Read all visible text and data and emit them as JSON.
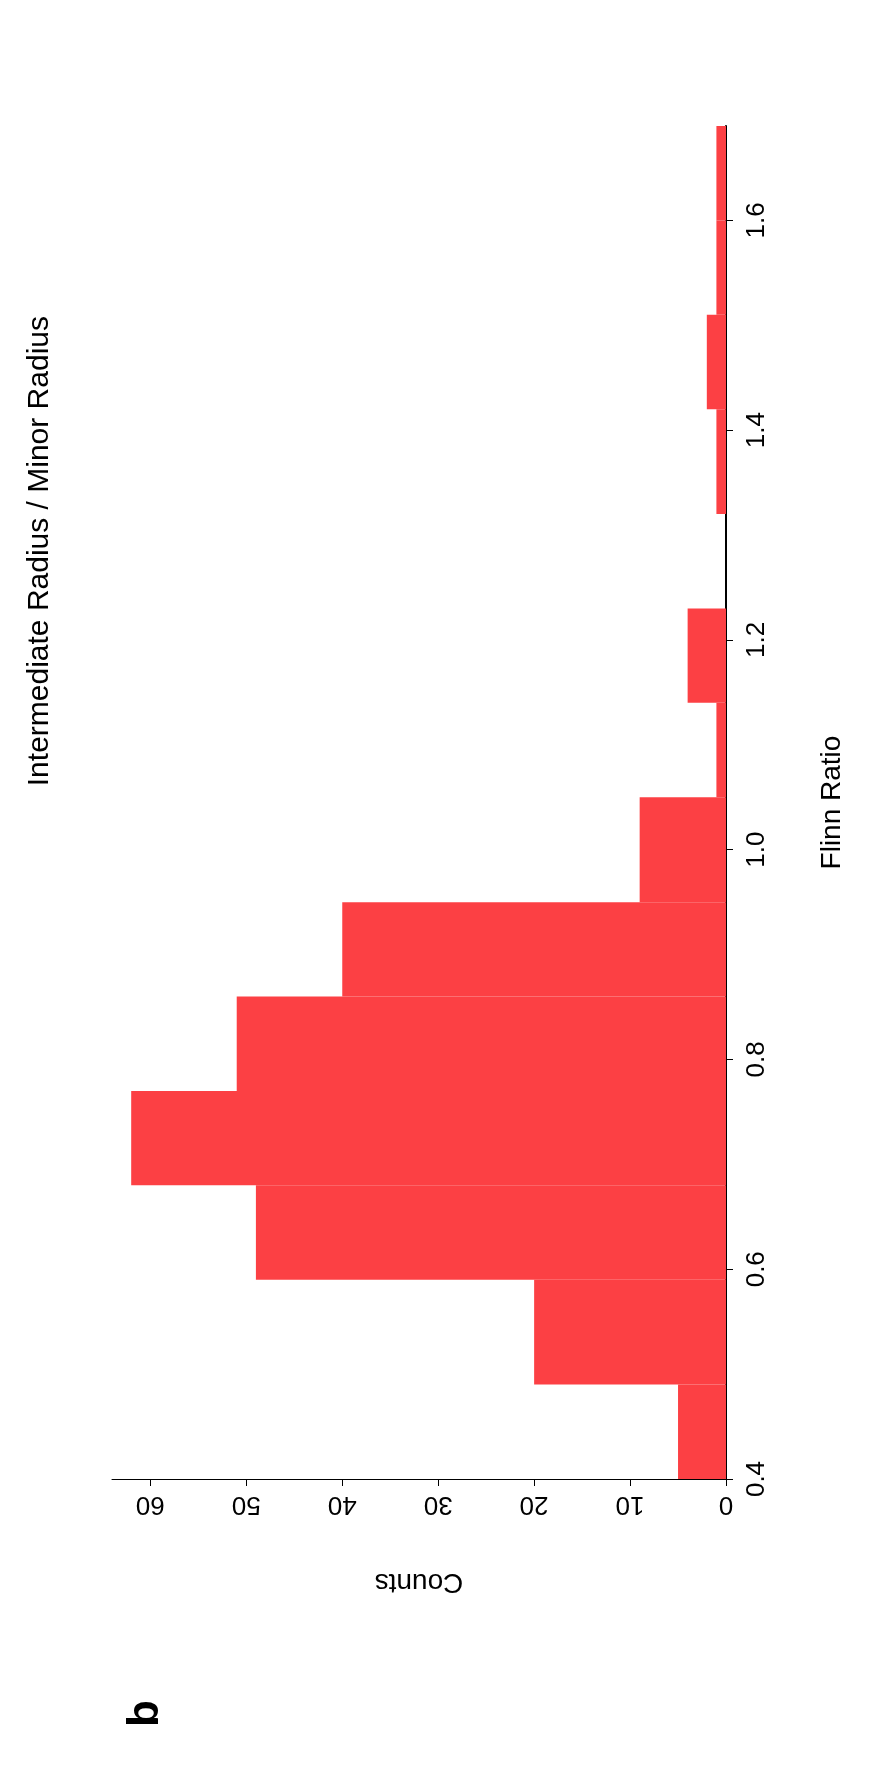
{
  "chart_data": {
    "type": "histogram",
    "orientation": "horizontal",
    "title": "Intermediate Radius / Minor Radius",
    "xlabel": "Counts",
    "ylabel": "Flinn Ratio",
    "bins": [
      0.4,
      0.49,
      0.59,
      0.68,
      0.77,
      0.86,
      0.95,
      1.05,
      1.14,
      1.23,
      1.32,
      1.42,
      1.51,
      1.6,
      1.69
    ],
    "values": [
      5,
      20,
      49,
      62,
      51,
      40,
      9,
      1,
      4,
      0,
      1,
      2,
      1,
      1
    ],
    "color": "#fc4044",
    "xlim": [
      64,
      0
    ],
    "xticks": [
      0,
      10,
      20,
      30,
      40,
      50,
      60
    ],
    "ylim": [
      0.4,
      1.69
    ],
    "yticks": [
      0.4,
      0.6,
      0.8,
      {
        "value": 1,
        "label": "1.0"
      },
      1.2,
      1.4,
      1.6
    ],
    "annotations": [
      "b"
    ]
  }
}
